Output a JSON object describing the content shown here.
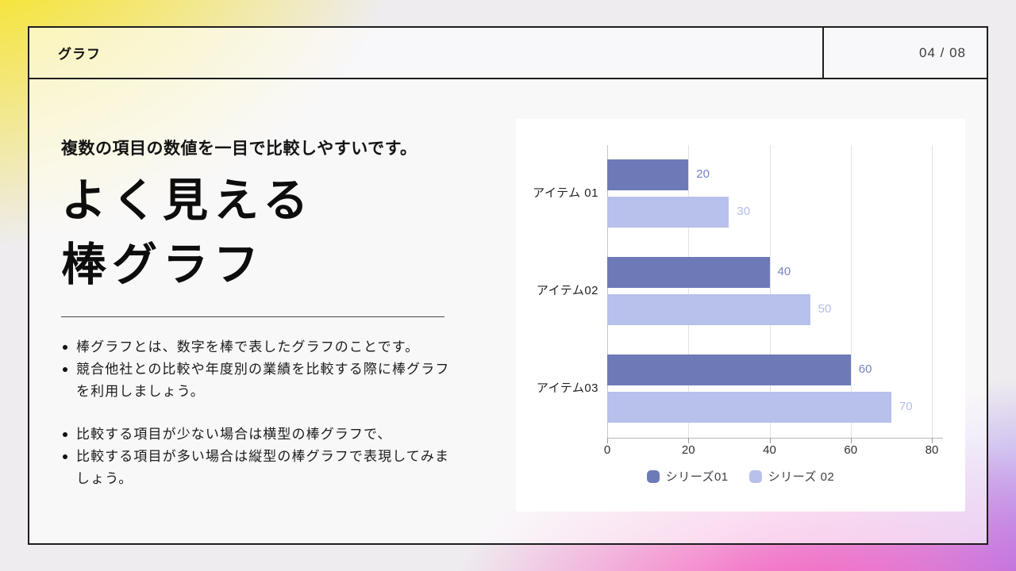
{
  "colors": {
    "accent_yellow": "#f6e437",
    "accent_pink": "#f768c2",
    "accent_purple": "#946af2",
    "panel_border": "#1e1e1e",
    "card_bg": "#ffffff"
  },
  "header": {
    "title": "グラフ",
    "page_number": "04 / 08"
  },
  "content": {
    "subtitle": "複数の項目の数値を一目で比較しやすいです。",
    "title_line1": "よく見える",
    "title_line2": "棒グラフ",
    "bullets_group1": [
      "棒グラフとは、数字を棒で表したグラフのことです。",
      "競合他社との比較や年度別の業績を比較する際に棒グラフを利用しましょう。"
    ],
    "bullets_group2": [
      "比較する項目が少ない場合は横型の棒グラフで、",
      "比較する項目が多い場合は縦型の棒グラフで表現してみましょう。"
    ]
  },
  "chart_data": {
    "type": "bar",
    "orientation": "horizontal",
    "title": "",
    "categories": [
      "アイテム 01",
      "アイテム02",
      "アイテム03"
    ],
    "series": [
      {
        "name": "シリーズ01",
        "color": "#6e7ab8",
        "label_color": "#7584c4",
        "values": [
          20,
          40,
          60
        ]
      },
      {
        "name": "シリーズ 02",
        "color": "#b7c1ec",
        "label_color": "#b2bdea",
        "values": [
          30,
          50,
          70
        ]
      }
    ],
    "xlim": [
      0,
      80
    ],
    "xticks": [
      0,
      20,
      40,
      60,
      80
    ],
    "grid": true,
    "legend_position": "bottom",
    "value_labels": true
  }
}
